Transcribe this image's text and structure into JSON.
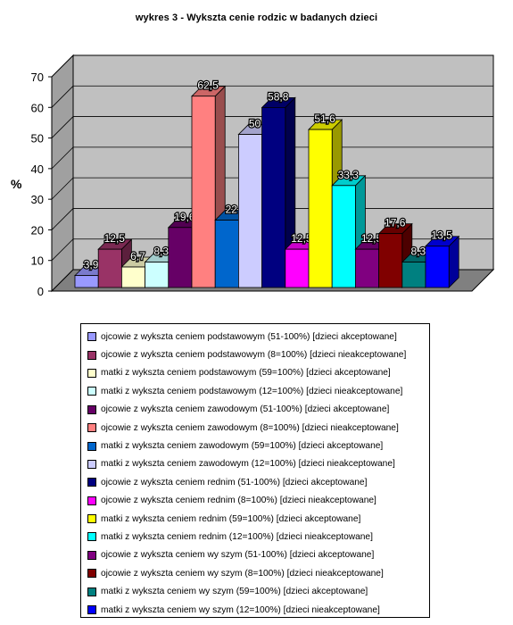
{
  "chart_data": {
    "type": "bar",
    "title": "wykres 3 - Wykszta cenie rodzic  w badanych dzieci",
    "ylabel": "%",
    "xlabel": "",
    "ylim": [
      0,
      70
    ],
    "yticks": [
      "0",
      "10",
      "20",
      "30",
      "40",
      "50",
      "60",
      "70"
    ],
    "grid": true,
    "three_d": true,
    "legend_position": "bottom",
    "series": [
      {
        "name": "ojcowie z wykszta ceniem podstawowym (51-100%) [dzieci akceptowane]",
        "value": 3.9,
        "label": "3,9",
        "color": "#9999ff"
      },
      {
        "name": "ojcowie z wykszta ceniem podstawowym (8=100%) [dzieci nieakceptowane]",
        "value": 12.5,
        "label": "12,5",
        "color": "#993366"
      },
      {
        "name": "matki z wykszta ceniem podstawowym (59=100%) [dzieci akceptowane]",
        "value": 6.7,
        "label": "6,7",
        "color": "#ffffcc"
      },
      {
        "name": "matki z wykszta ceniem podstawowym (12=100%) [dzieci nieakceptowane]",
        "value": 8.3,
        "label": "8,3",
        "color": "#ccffff"
      },
      {
        "name": "ojcowie z wykszta ceniem zawodowym (51-100%) [dzieci akceptowane]",
        "value": 19.6,
        "label": "19,6",
        "color": "#660066"
      },
      {
        "name": "ojcowie z wykszta ceniem zawodowym (8=100%) [dzieci nieakceptowane]",
        "value": 62.5,
        "label": "62,5",
        "color": "#ff8080"
      },
      {
        "name": "matki z wykszta ceniem zawodowym (59=100%) [dzieci akceptowane]",
        "value": 22,
        "label": "22",
        "color": "#0066cc"
      },
      {
        "name": "matki z wykszta ceniem zawodowym (12=100%) [dzieci nieakceptowane]",
        "value": 50,
        "label": "50",
        "color": "#ccccff"
      },
      {
        "name": "ojcowie z wykszta ceniem   rednim (51-100%) [dzieci akceptowane]",
        "value": 58.8,
        "label": "58,8",
        "color": "#000080"
      },
      {
        "name": "ojcowie z wykszta ceniem   rednim (8=100%) [dzieci nieakceptowane]",
        "value": 12.5,
        "label": "12,5",
        "color": "#ff00ff"
      },
      {
        "name": "matki z wykszta ceniem   rednim (59=100%) [dzieci akceptowane]",
        "value": 51.6,
        "label": "51,6",
        "color": "#ffff00"
      },
      {
        "name": "matki z wykszta ceniem   rednim (12=100%) [dzieci nieakceptowane]",
        "value": 33.3,
        "label": "33,3",
        "color": "#00ffff"
      },
      {
        "name": "ojcowie z wykszta ceniem wy  szym (51-100%) [dzieci akceptowane]",
        "value": 12.5,
        "label": "12,5",
        "color": "#800080"
      },
      {
        "name": "ojcowie z wykszta ceniem wy  szym (8=100%) [dzieci nieakceptowane]",
        "value": 17.6,
        "label": "17,6",
        "color": "#800000"
      },
      {
        "name": "matki z wykszta ceniem wy  szym (59=100%) [dzieci akceptowane]",
        "value": 8.3,
        "label": "8,3",
        "color": "#008080"
      },
      {
        "name": "matki z wykszta ceniem wy  szym (12=100%) [dzieci nieakceptowane]",
        "value": 13.5,
        "label": "13,5",
        "color": "#0000ff"
      }
    ]
  }
}
